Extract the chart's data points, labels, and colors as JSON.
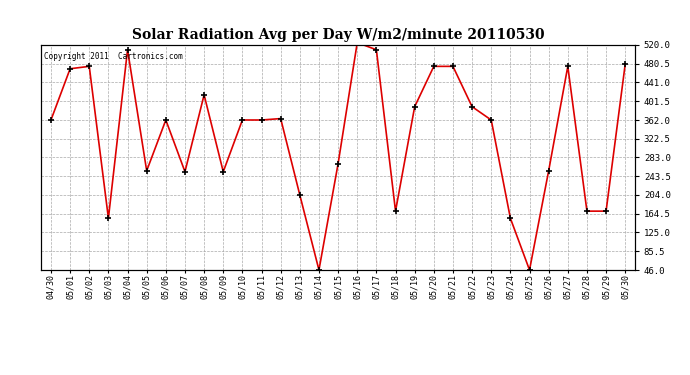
{
  "title": "Solar Radiation Avg per Day W/m2/minute 20110530",
  "copyright": "Copyright 2011  Cartronics.com",
  "dates": [
    "04/30",
    "05/01",
    "05/02",
    "05/03",
    "05/04",
    "05/05",
    "05/06",
    "05/07",
    "05/08",
    "05/09",
    "05/10",
    "05/11",
    "05/12",
    "05/13",
    "05/14",
    "05/15",
    "05/16",
    "05/17",
    "05/18",
    "05/19",
    "05/20",
    "05/21",
    "05/22",
    "05/23",
    "05/24",
    "05/25",
    "05/26",
    "05/27",
    "05/28",
    "05/29",
    "05/30"
  ],
  "values": [
    362,
    470,
    475,
    155,
    510,
    255,
    362,
    253,
    415,
    253,
    362,
    362,
    365,
    204,
    46,
    270,
    525,
    510,
    170,
    390,
    475,
    475,
    390,
    362,
    155,
    46,
    255,
    475,
    170,
    170,
    480
  ],
  "line_color": "#dd0000",
  "marker_color": "#000000",
  "bg_color": "#ffffff",
  "grid_color": "#aaaaaa",
  "yticks": [
    46.0,
    85.5,
    125.0,
    164.5,
    204.0,
    243.5,
    283.0,
    322.5,
    362.0,
    401.5,
    441.0,
    480.5,
    520.0
  ]
}
